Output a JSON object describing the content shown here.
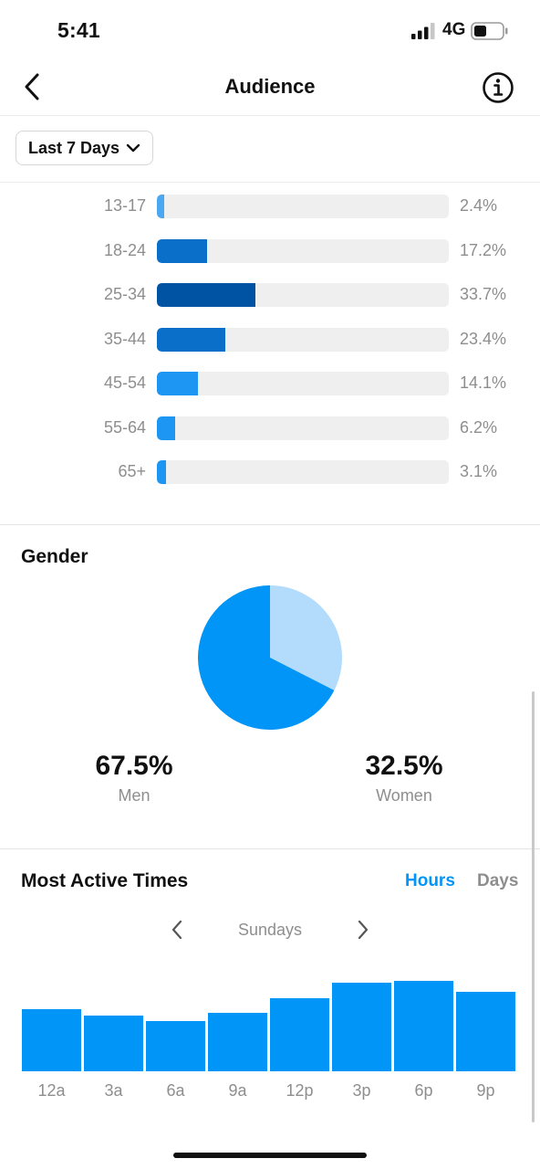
{
  "status_bar": {
    "time": "5:41",
    "network": "4G"
  },
  "header": {
    "title": "Audience"
  },
  "filter": {
    "range_label": "Last 7 Days"
  },
  "age_ranges": [
    {
      "label": "13-17",
      "percent": "2.4%",
      "value": 2.4,
      "color": "#4aa8f2"
    },
    {
      "label": "18-24",
      "percent": "17.2%",
      "value": 17.2,
      "color": "#0a6fc9"
    },
    {
      "label": "25-34",
      "percent": "33.7%",
      "value": 33.7,
      "color": "#0053a3"
    },
    {
      "label": "35-44",
      "percent": "23.4%",
      "value": 23.4,
      "color": "#0a6fc9"
    },
    {
      "label": "45-54",
      "percent": "14.1%",
      "value": 14.1,
      "color": "#1c96f2"
    },
    {
      "label": "55-64",
      "percent": "6.2%",
      "value": 6.2,
      "color": "#1c96f2"
    },
    {
      "label": "65+",
      "percent": "3.1%",
      "value": 3.1,
      "color": "#1c96f2"
    }
  ],
  "gender": {
    "title": "Gender",
    "men": {
      "value": "67.5%",
      "label": "Men",
      "fraction": 0.675,
      "color": "#0095f6"
    },
    "women": {
      "value": "32.5%",
      "label": "Women",
      "fraction": 0.325,
      "color": "#b3dcfc"
    }
  },
  "active_times": {
    "title": "Most Active Times",
    "toggle_hours": "Hours",
    "toggle_days": "Days",
    "day": "Sundays",
    "accent": "#0095f6",
    "muted": "#8e8e8e"
  },
  "chart_data": {
    "type": "bar",
    "categories": [
      "12a",
      "3a",
      "6a",
      "9a",
      "12p",
      "3p",
      "6p",
      "9p"
    ],
    "values": [
      68,
      61,
      55,
      64,
      80,
      97,
      99,
      87
    ],
    "ylim": [
      0,
      100
    ],
    "color": "#0095f6",
    "grid": false
  }
}
